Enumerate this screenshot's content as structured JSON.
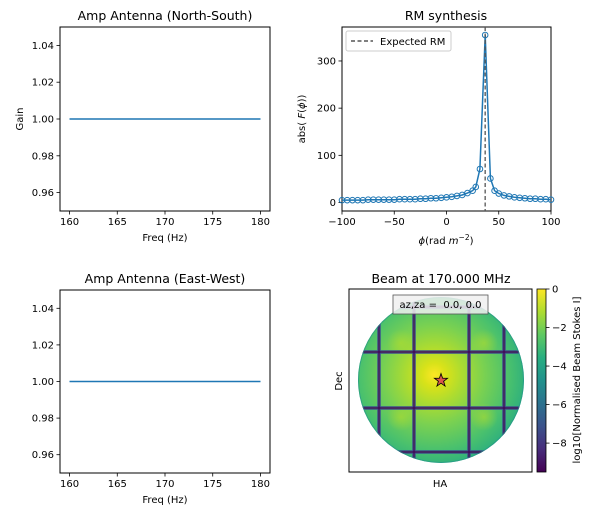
{
  "chart_data": [
    {
      "type": "line",
      "title": "Amp Antenna (North-South)",
      "xlabel": "Freq (Hz)",
      "ylabel": "Gain",
      "xlim": [
        159,
        181
      ],
      "ylim": [
        0.95,
        1.05
      ],
      "xticks": [
        160,
        165,
        170,
        175,
        180
      ],
      "xtick_labels": [
        "160",
        "165",
        "170",
        "175",
        "180"
      ],
      "yticks": [
        0.96,
        0.98,
        1.0,
        1.02,
        1.04
      ],
      "ytick_labels": [
        "0.96",
        "0.98",
        "1.00",
        "1.02",
        "1.04"
      ],
      "series": [
        {
          "name": "gain",
          "x": [
            160,
            180
          ],
          "y": [
            1.0,
            1.0
          ],
          "color": "#1f77b4"
        }
      ]
    },
    {
      "type": "line",
      "title": "RM synthesis",
      "xlabel": "ϕ(rad m⁻²)",
      "ylabel": "abs( F(ϕ))",
      "xlim": [
        -100,
        100
      ],
      "ylim": [
        -18,
        372
      ],
      "xticks": [
        -100,
        -50,
        0,
        50,
        100
      ],
      "xtick_labels": [
        "−100",
        "−50",
        "0",
        "50",
        "100"
      ],
      "yticks": [
        0,
        100,
        200,
        300
      ],
      "ytick_labels": [
        "0",
        "100",
        "200",
        "300"
      ],
      "legend": {
        "label": "Expected RM",
        "location": "upper-left"
      },
      "expected_rm": 37,
      "series": [
        {
          "name": "abs(F)",
          "color": "#1f77b4",
          "x": [
            -100,
            -95,
            -90,
            -85,
            -80,
            -75,
            -70,
            -65,
            -60,
            -55,
            -50,
            -45,
            -40,
            -35,
            -30,
            -25,
            -20,
            -15,
            -10,
            -5,
            0,
            5,
            10,
            15,
            20,
            25,
            28,
            32,
            37,
            42,
            46,
            50,
            55,
            60,
            65,
            70,
            75,
            80,
            85,
            90,
            95,
            100
          ],
          "y": [
            5,
            5,
            5,
            5,
            5,
            6,
            6,
            6,
            6,
            6,
            6,
            7,
            7,
            7,
            7,
            8,
            8,
            9,
            9,
            10,
            11,
            12,
            14,
            16,
            20,
            25,
            33,
            71,
            355,
            51,
            25,
            19,
            15,
            13,
            11,
            10,
            9,
            8,
            8,
            7,
            7,
            6
          ]
        }
      ]
    },
    {
      "type": "line",
      "title": "Amp Antenna (East-West)",
      "xlabel": "Freq (Hz)",
      "ylabel": "",
      "xlim": [
        159,
        181
      ],
      "ylim": [
        0.95,
        1.05
      ],
      "xticks": [
        160,
        165,
        170,
        175,
        180
      ],
      "xtick_labels": [
        "160",
        "165",
        "170",
        "175",
        "180"
      ],
      "yticks": [
        0.96,
        0.98,
        1.0,
        1.02,
        1.04
      ],
      "ytick_labels": [
        "0.96",
        "0.98",
        "1.00",
        "1.02",
        "1.04"
      ],
      "series": [
        {
          "name": "gain",
          "x": [
            160,
            180
          ],
          "y": [
            1.0,
            1.0
          ],
          "color": "#1f77b4"
        }
      ]
    },
    {
      "type": "heatmap",
      "title": "Beam at 170.000 MHz",
      "xlabel": "HA",
      "ylabel": "Dec",
      "annotation": "az,za =  0.0, 0.0",
      "colorbar": {
        "label": "log10[Normalised Beam Stokes I]",
        "range": [
          -9.5,
          0
        ],
        "ticks": [
          0,
          -2,
          -4,
          -6,
          -8
        ],
        "tick_labels": [
          "0",
          "−2",
          "−4",
          "−6",
          "−8"
        ],
        "colormap": "viridis"
      },
      "pointing_marker": "star"
    }
  ]
}
